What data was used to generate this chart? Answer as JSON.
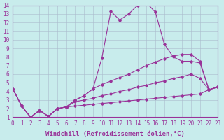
{
  "xlabel": "Windchill (Refroidissement éolien,°C)",
  "xlim": [
    0,
    23
  ],
  "ylim": [
    1,
    14
  ],
  "xticks": [
    0,
    1,
    2,
    3,
    4,
    5,
    6,
    7,
    8,
    9,
    10,
    11,
    12,
    13,
    14,
    15,
    16,
    17,
    18,
    19,
    20,
    21,
    22,
    23
  ],
  "yticks": [
    1,
    2,
    3,
    4,
    5,
    6,
    7,
    8,
    9,
    10,
    11,
    12,
    13,
    14
  ],
  "bg_color": "#c8ecec",
  "line_color": "#993399",
  "grid_color": "#aabbcc",
  "lines": [
    {
      "x": [
        0,
        1,
        2,
        3,
        4,
        5,
        6,
        7,
        8,
        9,
        10,
        11,
        12,
        13,
        14,
        15,
        16,
        17,
        18,
        19,
        20,
        21,
        22,
        23
      ],
      "y": [
        4.3,
        2.3,
        1.0,
        1.8,
        1.1,
        2.0,
        2.2,
        3.0,
        3.5,
        4.3,
        7.9,
        13.3,
        12.3,
        13.0,
        14.0,
        14.3,
        13.2,
        9.5,
        8.0,
        7.5,
        7.5,
        7.3,
        4.2,
        4.5
      ]
    },
    {
      "x": [
        0,
        1,
        2,
        3,
        4,
        5,
        6,
        7,
        8,
        9,
        10,
        11,
        12,
        13,
        14,
        15,
        16,
        17,
        18,
        19,
        20,
        21,
        22,
        23
      ],
      "y": [
        4.3,
        2.3,
        1.0,
        1.8,
        1.1,
        2.0,
        2.2,
        3.0,
        3.5,
        4.3,
        4.8,
        5.2,
        5.6,
        6.0,
        6.5,
        7.0,
        7.4,
        7.8,
        8.1,
        8.3,
        8.3,
        7.5,
        4.2,
        4.5
      ]
    },
    {
      "x": [
        0,
        1,
        2,
        3,
        4,
        5,
        6,
        7,
        8,
        9,
        10,
        11,
        12,
        13,
        14,
        15,
        16,
        17,
        18,
        19,
        20,
        21,
        22,
        23
      ],
      "y": [
        4.3,
        2.3,
        1.0,
        1.8,
        1.1,
        2.0,
        2.2,
        2.8,
        3.0,
        3.2,
        3.5,
        3.7,
        4.0,
        4.2,
        4.5,
        4.7,
        5.0,
        5.2,
        5.5,
        5.7,
        6.0,
        5.5,
        4.2,
        4.5
      ]
    },
    {
      "x": [
        0,
        1,
        2,
        3,
        4,
        5,
        6,
        7,
        8,
        9,
        10,
        11,
        12,
        13,
        14,
        15,
        16,
        17,
        18,
        19,
        20,
        21,
        22,
        23
      ],
      "y": [
        4.3,
        2.3,
        1.0,
        1.8,
        1.1,
        2.0,
        2.2,
        2.3,
        2.4,
        2.5,
        2.6,
        2.7,
        2.8,
        2.9,
        3.0,
        3.1,
        3.2,
        3.3,
        3.4,
        3.5,
        3.6,
        3.7,
        4.2,
        4.5
      ]
    }
  ],
  "tick_fontsize": 5.5,
  "xlabel_fontsize": 6.5
}
